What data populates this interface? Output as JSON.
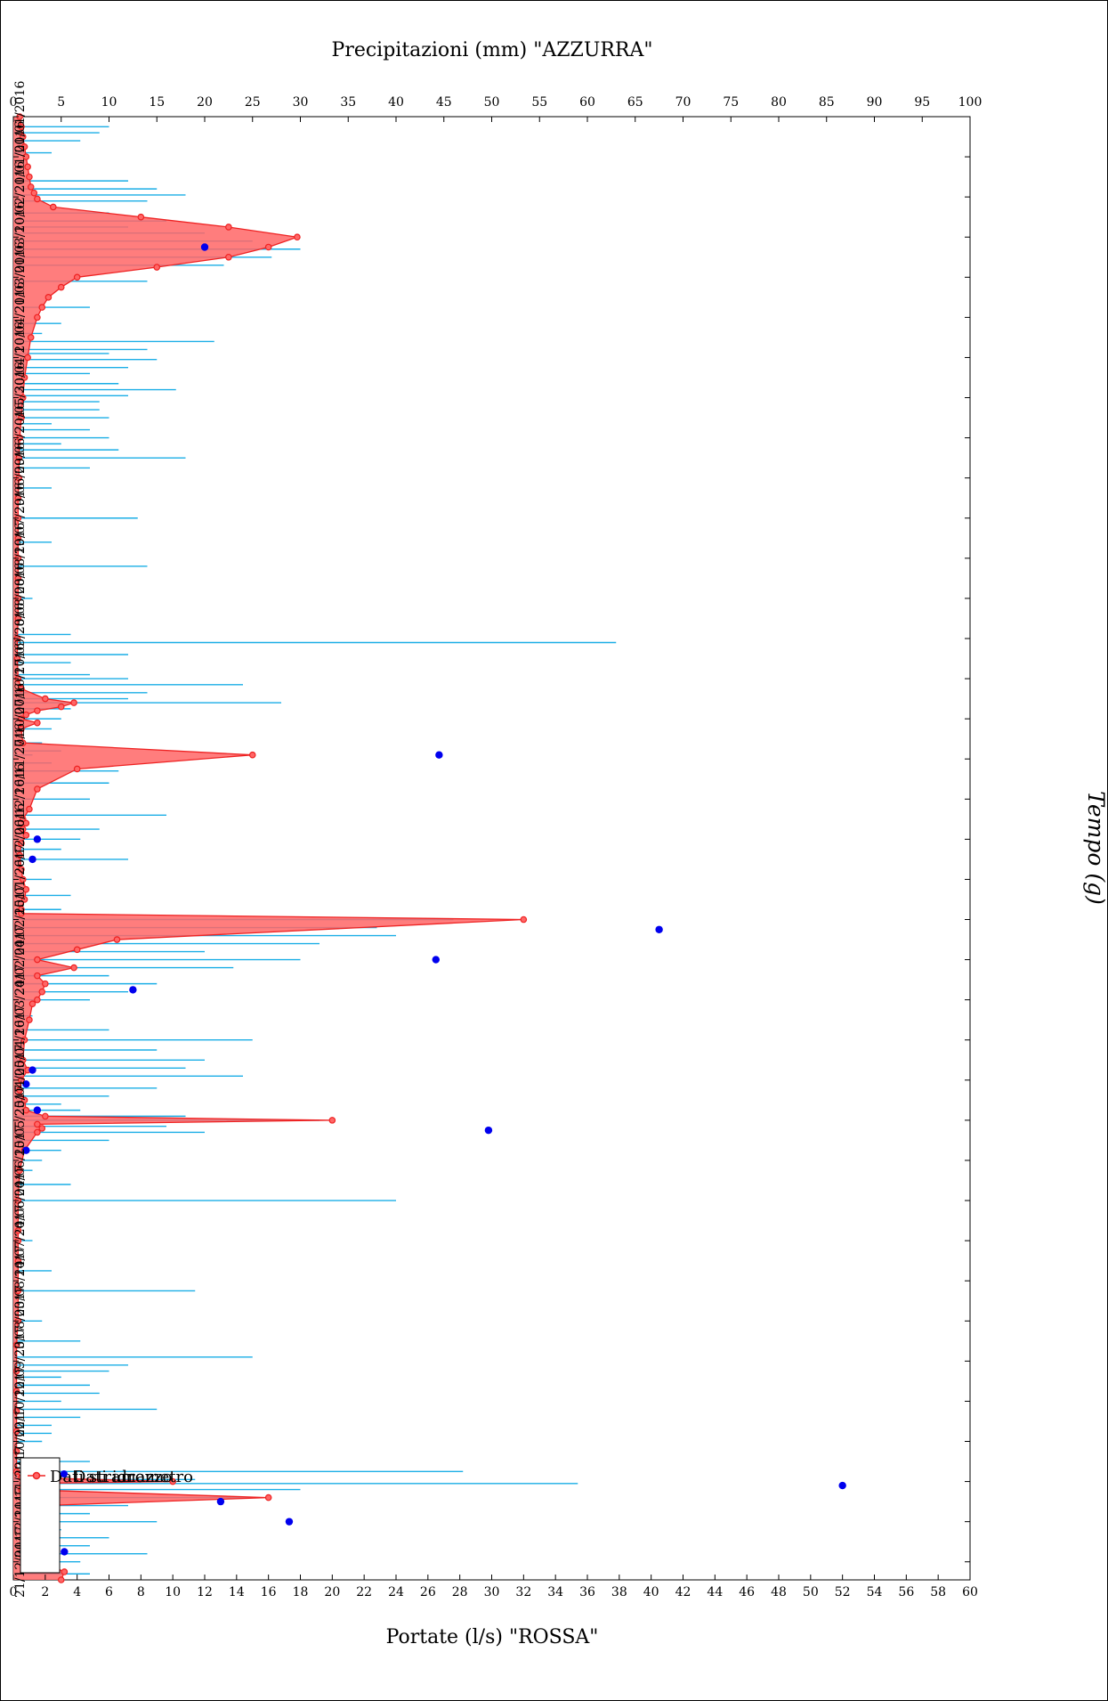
{
  "chart_data": {
    "type": "line",
    "orientation": "rotated-90-clockwise",
    "xlabel": "Tempo (g)",
    "ylabel": "Portate (l/s) \"ROSSA\"",
    "y2label": "Precipitazioni (mm) \"AZZURRA\"",
    "ylim": [
      0,
      60
    ],
    "y2lim": [
      0,
      100
    ],
    "yticks": [
      0,
      2,
      4,
      6,
      8,
      10,
      12,
      14,
      16,
      18,
      20,
      22,
      24,
      26,
      28,
      30,
      32,
      34,
      36,
      38,
      40,
      42,
      44,
      46,
      48,
      50,
      52,
      54,
      56,
      58,
      60
    ],
    "y2ticks": [
      0,
      5,
      10,
      15,
      20,
      25,
      30,
      35,
      40,
      45,
      50,
      55,
      60,
      65,
      70,
      75,
      80,
      85,
      90,
      95,
      100
    ],
    "xlim": [
      0,
      729
    ],
    "xticks": [
      {
        "day": 0,
        "label": "01/01/2016"
      },
      {
        "day": 20,
        "label": "21/01/2016"
      },
      {
        "day": 40,
        "label": "10/02/2016"
      },
      {
        "day": 60,
        "label": "01/03/2016"
      },
      {
        "day": 80,
        "label": "21/03/2016"
      },
      {
        "day": 100,
        "label": "10/04/2016"
      },
      {
        "day": 120,
        "label": "30/04/2016"
      },
      {
        "day": 140,
        "label": "20/05/2016"
      },
      {
        "day": 160,
        "label": "09/06/2016"
      },
      {
        "day": 180,
        "label": "29/06/2016"
      },
      {
        "day": 200,
        "label": "19/07/2016"
      },
      {
        "day": 220,
        "label": "08/08/2016"
      },
      {
        "day": 240,
        "label": "28/08/2016"
      },
      {
        "day": 260,
        "label": "17/09/2016"
      },
      {
        "day": 280,
        "label": "07/10/2016"
      },
      {
        "day": 300,
        "label": "27/10/2016"
      },
      {
        "day": 320,
        "label": "16/11/2016"
      },
      {
        "day": 340,
        "label": "06/12/2016"
      },
      {
        "day": 360,
        "label": "26/12/2016"
      },
      {
        "day": 380,
        "label": "15/01/2017"
      },
      {
        "day": 400,
        "label": "04/02/2017"
      },
      {
        "day": 420,
        "label": "24/02/2017"
      },
      {
        "day": 440,
        "label": "16/03/2017"
      },
      {
        "day": 460,
        "label": "05/04/2017"
      },
      {
        "day": 480,
        "label": "25/04/2017"
      },
      {
        "day": 500,
        "label": "15/05/2017"
      },
      {
        "day": 520,
        "label": "04/06/2017"
      },
      {
        "day": 540,
        "label": "24/06/2017"
      },
      {
        "day": 560,
        "label": "14/07/2017"
      },
      {
        "day": 580,
        "label": "03/08/2017"
      },
      {
        "day": 600,
        "label": "23/08/2017"
      },
      {
        "day": 620,
        "label": "12/09/2017"
      },
      {
        "day": 640,
        "label": "02/10/2017"
      },
      {
        "day": 660,
        "label": "22/10/2017"
      },
      {
        "day": 680,
        "label": "11/11/2017"
      },
      {
        "day": 700,
        "label": "01/12/2017"
      },
      {
        "day": 720,
        "label": "21/12/2017"
      }
    ],
    "legend": {
      "position": "bottom-left",
      "entries": [
        "Dati stramazzo",
        "Dati idrometro"
      ]
    },
    "grid": false,
    "colors": {
      "stramazzo": "#ee2222",
      "stramazzo_fill": "#ff6666",
      "idrometro": "#0000ee",
      "precipitazioni": "#1aaee6",
      "frame": "#000000"
    },
    "series": [
      {
        "name": "Dati stramazzo",
        "axis": "left",
        "style": "line-with-markers-filled-area",
        "x": [
          0,
          5,
          10,
          15,
          20,
          25,
          30,
          35,
          38,
          41,
          45,
          50,
          55,
          60,
          65,
          70,
          75,
          80,
          85,
          90,
          95,
          100,
          110,
          120,
          130,
          140,
          150,
          160,
          170,
          180,
          190,
          200,
          210,
          220,
          230,
          240,
          250,
          260,
          270,
          280,
          285,
          290,
          292,
          294,
          296,
          298,
          300,
          302,
          305,
          312,
          318,
          325,
          335,
          345,
          350,
          352,
          355,
          358,
          362,
          368,
          375,
          380,
          385,
          390,
          395,
          397,
          400,
          410,
          415,
          420,
          424,
          428,
          432,
          436,
          440,
          442,
          450,
          460,
          470,
          475,
          480,
          485,
          490,
          495,
          498,
          500,
          502,
          504,
          506,
          515,
          525,
          540,
          555,
          560,
          570,
          585,
          600,
          612,
          625,
          635,
          645,
          655,
          665,
          675,
          678,
          680,
          681,
          684,
          688,
          692,
          697,
          700,
          703,
          708,
          712,
          716,
          720,
          725,
          729
        ],
        "y": [
          0.4,
          0.5,
          0.6,
          0.7,
          0.8,
          0.9,
          1.0,
          1.1,
          1.3,
          1.5,
          2.5,
          8.0,
          13.5,
          17.8,
          16.0,
          13.5,
          9.0,
          4.0,
          3.0,
          2.2,
          1.8,
          1.5,
          1.1,
          0.9,
          0.7,
          0.6,
          0.5,
          0.4,
          0.35,
          0.35,
          0.3,
          0.3,
          0.3,
          0.3,
          0.3,
          0.3,
          0.3,
          0.25,
          0.25,
          0.3,
          0.5,
          2.0,
          3.8,
          3.0,
          1.5,
          0.8,
          0.5,
          1.5,
          0.5,
          0.6,
          15.0,
          4.0,
          1.5,
          1.0,
          0.6,
          0.8,
          0.6,
          0.8,
          0.5,
          0.4,
          0.5,
          0.6,
          0.8,
          0.7,
          0.5,
          0.5,
          32.0,
          6.5,
          4.0,
          1.5,
          3.8,
          1.5,
          2.0,
          1.8,
          1.5,
          1.2,
          1.0,
          0.7,
          0.6,
          0.9,
          0.5,
          0.4,
          0.7,
          0.8,
          2.0,
          20.0,
          1.5,
          1.8,
          1.5,
          0.7,
          0.4,
          0.3,
          0.3,
          0.3,
          0.3,
          0.3,
          0.3,
          0.2,
          0.2,
          0.2,
          0.2,
          0.2,
          0.2,
          0.2,
          0.5,
          10.0,
          0.6,
          0.5,
          16.0,
          1.8,
          1.4,
          2.5,
          2.2,
          1.5,
          2.2,
          1.5,
          1.8,
          3.2,
          3.0
        ]
      },
      {
        "name": "Dati idrometro",
        "axis": "left",
        "style": "markers",
        "x": [
          65,
          318,
          360,
          370,
          405,
          420,
          435,
          475,
          482,
          495,
          505,
          515,
          682,
          690,
          700,
          715
        ],
        "y": [
          12.0,
          26.7,
          1.5,
          1.2,
          40.5,
          26.5,
          7.5,
          1.2,
          0.8,
          1.5,
          29.8,
          0.8,
          52.0,
          13.0,
          17.3,
          3.2
        ]
      },
      {
        "name": "Precipitazioni",
        "axis": "right",
        "style": "bars",
        "x": [
          5,
          8,
          12,
          18,
          32,
          36,
          39,
          42,
          48,
          52,
          55,
          58,
          62,
          66,
          70,
          74,
          82,
          95,
          103,
          108,
          112,
          116,
          118,
          121,
          125,
          128,
          133,
          136,
          139,
          142,
          146,
          150,
          153,
          156,
          160,
          163,
          166,
          170,
          175,
          185,
          200,
          212,
          224,
          240,
          258,
          262,
          268,
          272,
          278,
          280,
          283,
          287,
          290,
          292,
          295,
          300,
          305,
          312,
          316,
          318,
          322,
          326,
          332,
          340,
          348,
          355,
          360,
          365,
          370,
          380,
          388,
          395,
          400,
          404,
          408,
          412,
          416,
          420,
          424,
          428,
          432,
          436,
          440,
          448,
          455,
          460,
          465,
          470,
          474,
          478,
          484,
          488,
          492,
          495,
          498,
          500,
          503,
          506,
          510,
          515,
          520,
          525,
          532,
          540,
          560,
          575,
          585,
          600,
          610,
          618,
          622,
          625,
          628,
          632,
          636,
          640,
          644,
          648,
          652,
          656,
          660,
          670,
          675,
          679,
          681,
          684,
          688,
          692,
          696,
          700,
          704,
          708,
          712,
          716,
          720,
          726
        ],
        "y": [
          10,
          9,
          7,
          4,
          12,
          15,
          18,
          14,
          10,
          16,
          12,
          20,
          25,
          30,
          27,
          22,
          14,
          8,
          5,
          3,
          21,
          14,
          10,
          15,
          12,
          8,
          11,
          17,
          12,
          9,
          9,
          10,
          4,
          8,
          10,
          5,
          11,
          18,
          8,
          4,
          13,
          4,
          14,
          2,
          6,
          63,
          12,
          6,
          8,
          12,
          24,
          14,
          12,
          28,
          6,
          5,
          4,
          3,
          5,
          2,
          4,
          11,
          10,
          8,
          16,
          9,
          7,
          5,
          12,
          4,
          6,
          5,
          46,
          38,
          40,
          32,
          20,
          30,
          23,
          10,
          15,
          12,
          8,
          2,
          10,
          25,
          15,
          20,
          18,
          24,
          15,
          10,
          5,
          7,
          18,
          32,
          16,
          20,
          10,
          5,
          3,
          2,
          6,
          40,
          2,
          4,
          19,
          3,
          7,
          25,
          12,
          10,
          5,
          8,
          9,
          5,
          15,
          7,
          4,
          4,
          3,
          8,
          47,
          19,
          59,
          30,
          25,
          12,
          8,
          15,
          5,
          10,
          8,
          14,
          7,
          8
        ]
      }
    ]
  }
}
